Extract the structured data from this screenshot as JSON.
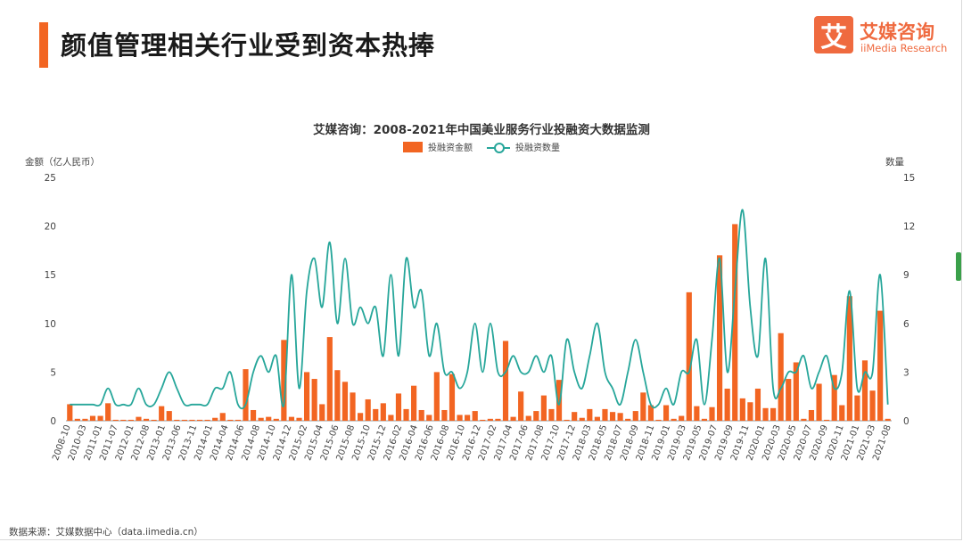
{
  "header": {
    "title": "颜值管理相关行业受到资本热捧",
    "logo_char": "艾",
    "brand_name": "艾媒咨询",
    "brand_sub": "iiMedia Research"
  },
  "footer": {
    "source": "数据来源：艾媒数据中心（data.iimedia.cn）"
  },
  "colors": {
    "accent": "#f26522",
    "bar": "#f26522",
    "line": "#26a69a",
    "brand": "#ef6a3f"
  },
  "chart_data": {
    "type": "bar+line",
    "title": "艾媒咨询：2008-2021年中国美业服务行业投融资大数据监测",
    "ylabel_left": "金额（亿人民币）",
    "ylabel_right": "数量",
    "ylim_left": [
      0,
      25
    ],
    "ylim_right": [
      0,
      15
    ],
    "yticks_left": [
      "0",
      "5",
      "10",
      "15",
      "20",
      "25"
    ],
    "yticks_right": [
      "0",
      "3",
      "6",
      "9",
      "12",
      "15"
    ],
    "grid": false,
    "legend_position": "top-center",
    "x_tick_labels": [
      "2008-10",
      "2010-03",
      "2011-01",
      "2011-07",
      "2012-01",
      "2012-08",
      "2013-01",
      "2013-06",
      "2013-11",
      "2014-01",
      "2014-04",
      "2014-06",
      "2014-08",
      "2014-10",
      "2014-12",
      "2015-02",
      "2015-04",
      "2015-06",
      "2015-08",
      "2015-10",
      "2015-12",
      "2016-02",
      "2016-04",
      "2016-06",
      "2016-08",
      "2016-10",
      "2016-12",
      "2017-02",
      "2017-04",
      "2017-06",
      "2017-08",
      "2017-10",
      "2017-12",
      "2018-03",
      "2018-05",
      "2018-07",
      "2018-09",
      "2018-11",
      "2019-01",
      "2019-03",
      "2019-05",
      "2019-07",
      "2019-09",
      "2019-11",
      "2020-01",
      "2020-03",
      "2020-05",
      "2020-07",
      "2020-09",
      "2020-11",
      "2021-01",
      "2021-03",
      "2021-08"
    ],
    "series": [
      {
        "name": "投融资金额",
        "type": "bar",
        "values": [
          1.7,
          0.2,
          0.2,
          0.5,
          0.5,
          1.8,
          0.1,
          0.1,
          0.1,
          0.4,
          0.2,
          0.1,
          1.5,
          1.0,
          0.1,
          0.1,
          0.1,
          0.1,
          0.1,
          0.3,
          0.8,
          0.1,
          0.1,
          5.3,
          1.1,
          0.3,
          0.4,
          0.2,
          8.3,
          0.4,
          0.3,
          5.0,
          4.3,
          1.7,
          8.6,
          5.2,
          4.0,
          2.9,
          0.8,
          2.2,
          1.2,
          1.8,
          0.6,
          2.8,
          1.2,
          3.6,
          1.1,
          0.6,
          5.0,
          1.1,
          4.8,
          0.6,
          0.6,
          1.0,
          0.1,
          0.2,
          0.2,
          8.2,
          0.4,
          3.0,
          0.5,
          1.0,
          2.6,
          1.2,
          4.2,
          0.1,
          0.9,
          0.3,
          1.2,
          0.4,
          1.2,
          0.9,
          0.8,
          0.2,
          1.0,
          2.9,
          1.6,
          0.1,
          1.6,
          0.2,
          0.5,
          13.2,
          1.5,
          0.2,
          1.4,
          17.0,
          3.3,
          20.2,
          2.3,
          1.9,
          3.3,
          1.3,
          1.3,
          9.0,
          4.3,
          6.0,
          0.2,
          1.1,
          3.8,
          0.1,
          4.7,
          1.6,
          12.8,
          2.6,
          6.2,
          3.1,
          11.3,
          0.2
        ]
      },
      {
        "name": "投融资数量",
        "type": "line",
        "values": [
          1,
          1,
          1,
          1,
          1,
          2,
          1,
          1,
          1,
          2,
          1,
          1,
          2,
          3,
          2,
          1,
          1,
          1,
          1,
          2,
          2,
          3,
          1,
          1,
          3,
          4,
          3,
          4,
          1,
          9,
          2,
          8,
          10,
          7,
          11,
          6,
          10,
          6,
          7,
          6,
          7,
          4,
          9,
          4,
          10,
          7,
          8,
          4,
          6,
          3,
          3,
          2,
          3,
          6,
          3,
          6,
          3,
          3,
          4,
          3,
          3,
          4,
          3,
          4,
          1,
          5,
          3,
          2,
          4,
          6,
          3,
          2,
          1,
          3,
          5,
          3,
          1,
          1,
          2,
          1,
          3,
          3,
          5,
          1,
          5,
          10,
          3,
          8,
          13,
          7,
          4,
          10,
          2,
          2,
          3,
          3,
          4,
          2,
          3,
          4,
          2,
          3,
          8,
          2,
          3,
          3,
          9,
          1
        ]
      }
    ]
  }
}
